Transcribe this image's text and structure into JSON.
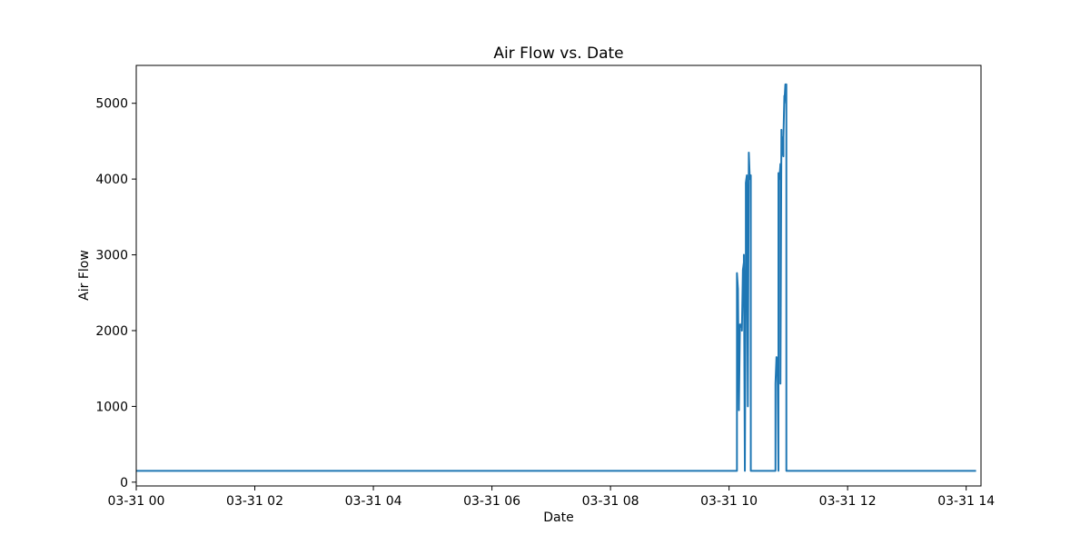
{
  "chart_data": {
    "type": "line",
    "title": "Air Flow vs. Date",
    "xlabel": "Date",
    "ylabel": "Air Flow",
    "x_ticks": [
      "03-31 00",
      "03-31 02",
      "03-31 04",
      "03-31 06",
      "03-31 08",
      "03-31 10",
      "03-31 12",
      "03-31 14"
    ],
    "x_tick_hours": [
      0,
      2,
      4,
      6,
      8,
      10,
      12,
      14
    ],
    "y_ticks": [
      0,
      1000,
      2000,
      3000,
      4000,
      5000
    ],
    "xlim": [
      "03-31 00:00",
      "03-31 14:15"
    ],
    "ylim": [
      -50,
      5500
    ],
    "grid": false,
    "color": "#1f77b4",
    "series": [
      {
        "x": [
          "03-31 00:00",
          "03-31 10:08",
          "03-31 10:08",
          "03-31 10:09",
          "03-31 10:10",
          "03-31 10:10",
          "03-31 10:11",
          "03-31 10:12",
          "03-31 10:13",
          "03-31 10:13",
          "03-31 10:14",
          "03-31 10:15",
          "03-31 10:15",
          "03-31 10:16",
          "03-31 10:17",
          "03-31 10:17",
          "03-31 10:18",
          "03-31 10:18",
          "03-31 10:19",
          "03-31 10:20",
          "03-31 10:21",
          "03-31 10:22",
          "03-31 10:22",
          "03-31 10:23",
          "03-31 10:23",
          "03-31 10:24",
          "03-31 10:24",
          "03-31 10:25",
          "03-31 10:26",
          "03-31 10:26",
          "03-31 10:27",
          "03-31 10:28",
          "03-31 10:28",
          "03-31 10:29",
          "03-31 10:30",
          "03-31 10:47",
          "03-31 10:47",
          "03-31 10:48",
          "03-31 10:49",
          "03-31 10:50",
          "03-31 10:50",
          "03-31 10:51",
          "03-31 10:52",
          "03-31 10:52",
          "03-31 10:53",
          "03-31 10:53",
          "03-31 10:54",
          "03-31 10:55",
          "03-31 10:55",
          "03-31 10:56",
          "03-31 10:56",
          "03-31 10:57",
          "03-31 10:58",
          "03-31 10:58",
          "03-31 14:10"
        ],
        "y": [
          150,
          150,
          2760,
          2550,
          950,
          1000,
          2080,
          2050,
          2100,
          2000,
          2800,
          2900,
          3000,
          150,
          3000,
          3950,
          4050,
          4000,
          1000,
          4350,
          4000,
          4050,
          150,
          150,
          150,
          150,
          150,
          150,
          150,
          150,
          150,
          150,
          150,
          150,
          150,
          150,
          1300,
          1650,
          1600,
          150,
          4080,
          4000,
          4200,
          1300,
          4650,
          4300,
          4550,
          4300,
          4550,
          5100,
          5000,
          5250,
          5250,
          150,
          150
        ]
      }
    ]
  }
}
